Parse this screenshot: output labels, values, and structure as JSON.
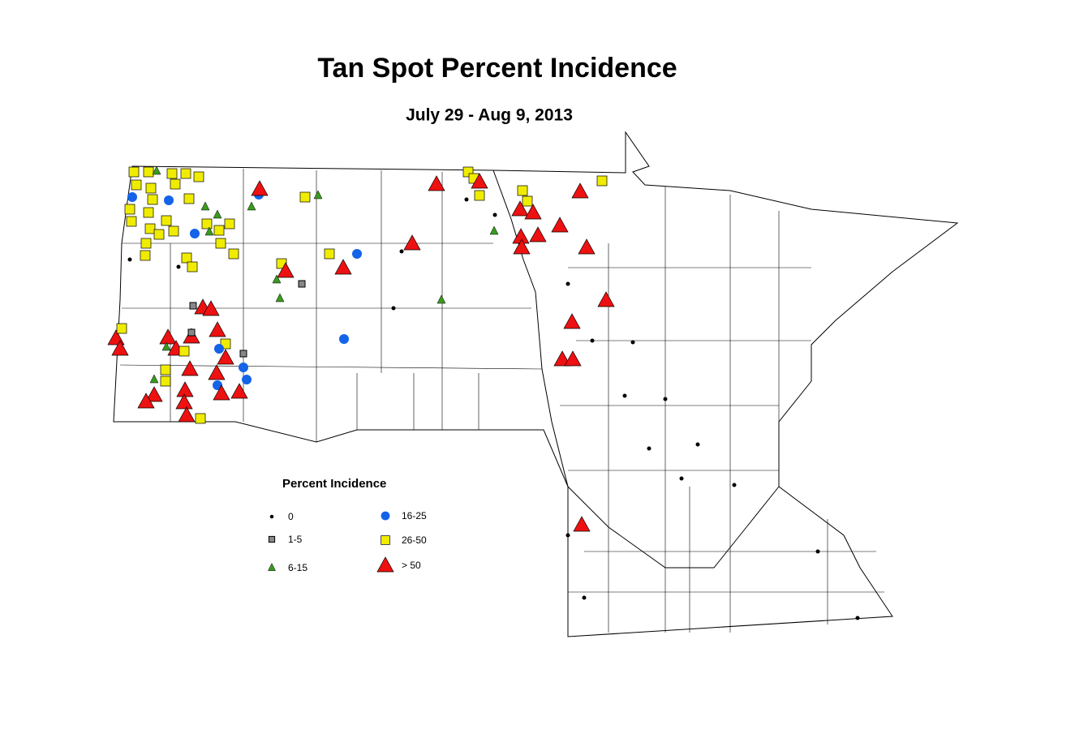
{
  "title": "Tan Spot Percent Incidence",
  "subtitle": "July 29 - Aug 9, 2013",
  "legend": {
    "title": "Percent Incidence",
    "items": [
      {
        "label": "0"
      },
      {
        "label": "1-5"
      },
      {
        "label": "6-15"
      },
      {
        "label": "16-25"
      },
      {
        "label": "26-50"
      },
      {
        "label": "> 50"
      }
    ]
  }
}
